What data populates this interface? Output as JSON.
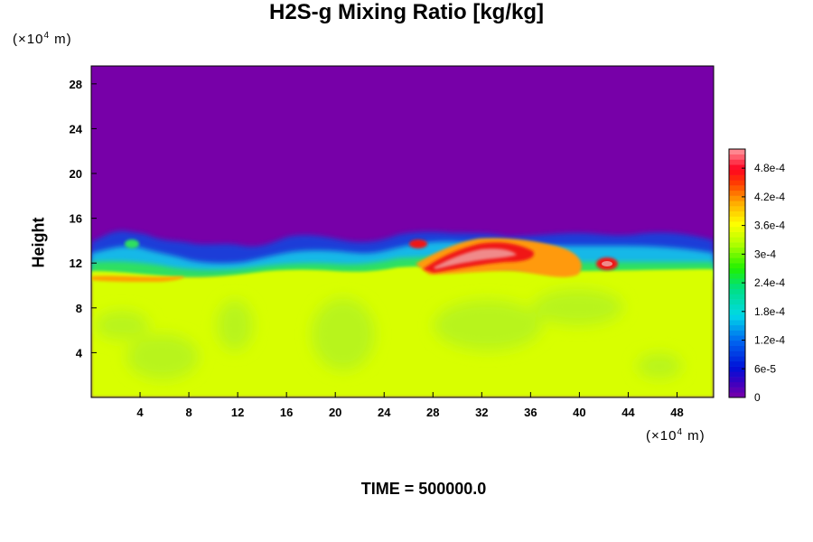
{
  "chart_data": {
    "type": "heatmap",
    "title": "H2S-g Mixing Ratio [kg/kg]",
    "ylabel": "Height",
    "x_unit": {
      "prefix": "(×10",
      "exp": "4",
      "suffix": " m)"
    },
    "y_unit": {
      "prefix": "(×10",
      "exp": "4",
      "suffix": " m)"
    },
    "xlim": [
      0,
      51
    ],
    "ylim": [
      0,
      29.6
    ],
    "x_ticks": [
      4,
      8,
      12,
      16,
      20,
      24,
      28,
      32,
      36,
      40,
      44,
      48
    ],
    "y_ticks": [
      4,
      8,
      12,
      16,
      20,
      24,
      28
    ],
    "colorbar": {
      "min": 0,
      "max": 0.00052,
      "tick_values": [
        0,
        6e-05,
        0.00012,
        0.00018,
        0.00024,
        0.0003,
        0.00036,
        0.00042,
        0.00048
      ],
      "tick_labels": [
        "0",
        "6e-5",
        "1.2e-4",
        "1.8e-4",
        "2.4e-4",
        "3e-4",
        "3.6e-4",
        "4.2e-4",
        "4.8e-4"
      ]
    },
    "field_summary": {
      "lower_layer_value": 0.00033,
      "upper_layer_value": 0,
      "interface_height": 13,
      "max_value": 0.0005,
      "max_location_x": 31
    },
    "footer": "TIME = 500000.0"
  }
}
